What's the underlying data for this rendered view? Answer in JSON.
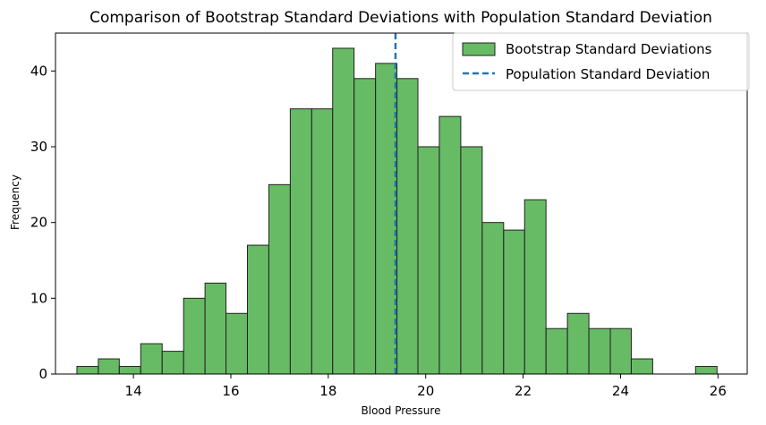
{
  "chart_data": {
    "type": "bar",
    "title": "Comparison of Bootstrap Standard Deviations with Population Standard Deviation",
    "xlabel": "Blood Pressure",
    "ylabel": "Frequency",
    "xlim": [
      12.4,
      26.6
    ],
    "ylim": [
      0,
      45
    ],
    "x_ticks": [
      14,
      16,
      18,
      20,
      22,
      24,
      26
    ],
    "y_ticks": [
      0,
      10,
      20,
      30,
      40
    ],
    "grid": false,
    "legend_position": "top-right",
    "bin_edges": [
      12.84,
      13.28,
      13.71,
      14.15,
      14.59,
      15.03,
      15.47,
      15.9,
      16.34,
      16.78,
      17.22,
      17.66,
      18.09,
      18.53,
      18.97,
      19.41,
      19.84,
      20.28,
      20.72,
      21.16,
      21.6,
      22.03,
      22.47,
      22.91,
      23.35,
      23.79,
      24.22,
      24.66,
      25.1,
      25.54,
      25.98
    ],
    "series": [
      {
        "name": "Bootstrap Standard Deviations",
        "type": "histogram",
        "values": [
          1,
          2,
          1,
          4,
          3,
          10,
          12,
          8,
          17,
          25,
          35,
          35,
          43,
          39,
          41,
          39,
          30,
          34,
          30,
          20,
          19,
          23,
          6,
          8,
          6,
          6,
          2,
          0,
          0,
          1
        ],
        "color": "#4daf4a"
      },
      {
        "name": "Population Standard Deviation",
        "type": "vline",
        "x": 19.38,
        "color": "#1f77b4"
      }
    ]
  }
}
